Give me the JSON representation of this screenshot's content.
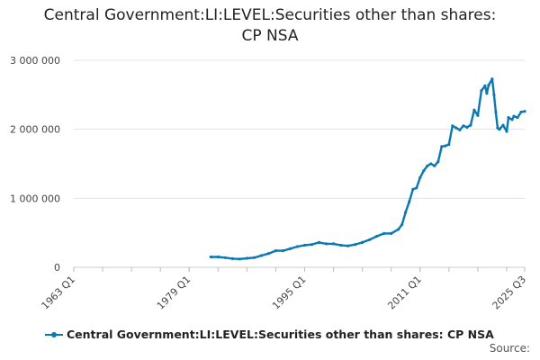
{
  "chart_data": {
    "type": "line",
    "title_line1": "Central Government:LI:LEVEL:Securities other than shares:",
    "title_line2": "CP NSA",
    "xlabel": "",
    "ylabel": "",
    "x_ticks": [
      "1963 Q1",
      "1979 Q1",
      "1995 Q1",
      "2011 Q1",
      "2025 Q3"
    ],
    "y_ticks": [
      "0",
      "1 000 000",
      "2 000 000",
      "3 000 000"
    ],
    "ylim": [
      0,
      3000000
    ],
    "grid": true,
    "legend_position": "bottom",
    "series": [
      {
        "name": "Central Government:LI:LEVEL:Securities other than shares: CP NSA",
        "color": "#0a78b4",
        "points": [
          [
            "1982 Q1",
            150000
          ],
          [
            "1983 Q1",
            150000
          ],
          [
            "1984 Q1",
            140000
          ],
          [
            "1985 Q1",
            125000
          ],
          [
            "1986 Q1",
            120000
          ],
          [
            "1987 Q1",
            130000
          ],
          [
            "1988 Q1",
            140000
          ],
          [
            "1989 Q1",
            170000
          ],
          [
            "1990 Q1",
            200000
          ],
          [
            "1991 Q1",
            240000
          ],
          [
            "1992 Q1",
            240000
          ],
          [
            "1993 Q1",
            270000
          ],
          [
            "1994 Q1",
            300000
          ],
          [
            "1995 Q1",
            320000
          ],
          [
            "1996 Q1",
            330000
          ],
          [
            "1997 Q1",
            360000
          ],
          [
            "1998 Q1",
            340000
          ],
          [
            "1999 Q1",
            340000
          ],
          [
            "2000 Q1",
            320000
          ],
          [
            "2001 Q1",
            310000
          ],
          [
            "2002 Q1",
            330000
          ],
          [
            "2003 Q1",
            360000
          ],
          [
            "2004 Q1",
            400000
          ],
          [
            "2005 Q1",
            450000
          ],
          [
            "2006 Q1",
            490000
          ],
          [
            "2007 Q1",
            490000
          ],
          [
            "2008 Q1",
            550000
          ],
          [
            "2008 Q3",
            620000
          ],
          [
            "2009 Q1",
            800000
          ],
          [
            "2009 Q3",
            950000
          ],
          [
            "2010 Q1",
            1130000
          ],
          [
            "2010 Q3",
            1150000
          ],
          [
            "2011 Q1",
            1300000
          ],
          [
            "2011 Q3",
            1400000
          ],
          [
            "2012 Q1",
            1470000
          ],
          [
            "2012 Q3",
            1500000
          ],
          [
            "2013 Q1",
            1470000
          ],
          [
            "2013 Q3",
            1530000
          ],
          [
            "2014 Q1",
            1750000
          ],
          [
            "2014 Q3",
            1760000
          ],
          [
            "2015 Q1",
            1780000
          ],
          [
            "2015 Q3",
            2050000
          ],
          [
            "2016 Q1",
            2020000
          ],
          [
            "2016 Q3",
            1990000
          ],
          [
            "2017 Q1",
            2050000
          ],
          [
            "2017 Q3",
            2030000
          ],
          [
            "2018 Q1",
            2060000
          ],
          [
            "2018 Q3",
            2280000
          ],
          [
            "2019 Q1",
            2200000
          ],
          [
            "2019 Q3",
            2560000
          ],
          [
            "2020 Q1",
            2630000
          ],
          [
            "2020 Q2",
            2520000
          ],
          [
            "2020 Q3",
            2640000
          ],
          [
            "2021 Q1",
            2730000
          ],
          [
            "2021 Q2",
            2500000
          ],
          [
            "2021 Q3",
            2250000
          ],
          [
            "2021 Q4",
            2020000
          ],
          [
            "2022 Q1",
            2000000
          ],
          [
            "2022 Q3",
            2060000
          ],
          [
            "2023 Q1",
            1970000
          ],
          [
            "2023 Q2",
            2170000
          ],
          [
            "2023 Q4",
            2140000
          ],
          [
            "2024 Q1",
            2190000
          ],
          [
            "2024 Q3",
            2170000
          ],
          [
            "2025 Q1",
            2250000
          ],
          [
            "2025 Q3",
            2260000
          ]
        ]
      }
    ]
  },
  "legend": {
    "label": "Central Government:LI:LEVEL:Securities other than shares: CP NSA"
  },
  "source": {
    "label": "Source:"
  }
}
